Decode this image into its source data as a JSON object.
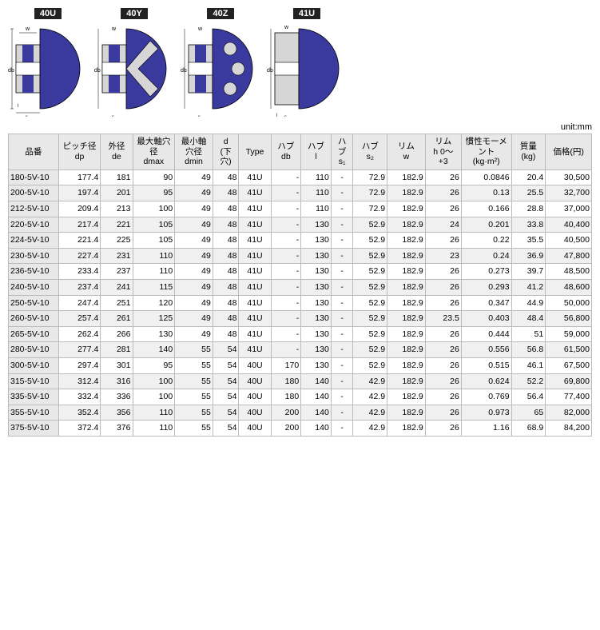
{
  "diagrams": {
    "labels": [
      "40U",
      "40Y",
      "40Z",
      "41U"
    ],
    "pulley_fill": "#3a3a9e",
    "bg_fill": "#d6d6d6",
    "line_color": "#000"
  },
  "unit_text": "unit:mm",
  "headers": [
    "品番",
    "ピッチ径\ndp",
    "外径\nde",
    "最大軸穴\n径\ndmax",
    "最小軸\n穴径\ndmin",
    "d\n(下\n穴)",
    "Type",
    "ハブ\ndb",
    "ハブ\nl",
    "ハ\nブ\ns₁",
    "ハブ\ns₂",
    "リム\nw",
    "リム\nh 0～\n+3",
    "慣性モーメ\nント\n(kg·m²)",
    "質量\n(kg)",
    "価格(円)"
  ],
  "rows": [
    [
      "180-5V-10",
      "177.4",
      "181",
      "90",
      "49",
      "48",
      "41U",
      "-",
      "110",
      "-",
      "72.9",
      "182.9",
      "26",
      "0.0846",
      "20.4",
      "30,500"
    ],
    [
      "200-5V-10",
      "197.4",
      "201",
      "95",
      "49",
      "48",
      "41U",
      "-",
      "110",
      "-",
      "72.9",
      "182.9",
      "26",
      "0.13",
      "25.5",
      "32,700"
    ],
    [
      "212-5V-10",
      "209.4",
      "213",
      "100",
      "49",
      "48",
      "41U",
      "-",
      "110",
      "-",
      "72.9",
      "182.9",
      "26",
      "0.166",
      "28.8",
      "37,000"
    ],
    [
      "220-5V-10",
      "217.4",
      "221",
      "105",
      "49",
      "48",
      "41U",
      "-",
      "130",
      "-",
      "52.9",
      "182.9",
      "24",
      "0.201",
      "33.8",
      "40,400"
    ],
    [
      "224-5V-10",
      "221.4",
      "225",
      "105",
      "49",
      "48",
      "41U",
      "-",
      "130",
      "-",
      "52.9",
      "182.9",
      "26",
      "0.22",
      "35.5",
      "40,500"
    ],
    [
      "230-5V-10",
      "227.4",
      "231",
      "110",
      "49",
      "48",
      "41U",
      "-",
      "130",
      "-",
      "52.9",
      "182.9",
      "23",
      "0.24",
      "36.9",
      "47,800"
    ],
    [
      "236-5V-10",
      "233.4",
      "237",
      "110",
      "49",
      "48",
      "41U",
      "-",
      "130",
      "-",
      "52.9",
      "182.9",
      "26",
      "0.273",
      "39.7",
      "48,500"
    ],
    [
      "240-5V-10",
      "237.4",
      "241",
      "115",
      "49",
      "48",
      "41U",
      "-",
      "130",
      "-",
      "52.9",
      "182.9",
      "26",
      "0.293",
      "41.2",
      "48,600"
    ],
    [
      "250-5V-10",
      "247.4",
      "251",
      "120",
      "49",
      "48",
      "41U",
      "-",
      "130",
      "-",
      "52.9",
      "182.9",
      "26",
      "0.347",
      "44.9",
      "50,000"
    ],
    [
      "260-5V-10",
      "257.4",
      "261",
      "125",
      "49",
      "48",
      "41U",
      "-",
      "130",
      "-",
      "52.9",
      "182.9",
      "23.5",
      "0.403",
      "48.4",
      "56,800"
    ],
    [
      "265-5V-10",
      "262.4",
      "266",
      "130",
      "49",
      "48",
      "41U",
      "-",
      "130",
      "-",
      "52.9",
      "182.9",
      "26",
      "0.444",
      "51",
      "59,000"
    ],
    [
      "280-5V-10",
      "277.4",
      "281",
      "140",
      "55",
      "54",
      "41U",
      "-",
      "130",
      "-",
      "52.9",
      "182.9",
      "26",
      "0.556",
      "56.8",
      "61,500"
    ],
    [
      "300-5V-10",
      "297.4",
      "301",
      "95",
      "55",
      "54",
      "40U",
      "170",
      "130",
      "-",
      "52.9",
      "182.9",
      "26",
      "0.515",
      "46.1",
      "67,500"
    ],
    [
      "315-5V-10",
      "312.4",
      "316",
      "100",
      "55",
      "54",
      "40U",
      "180",
      "140",
      "-",
      "42.9",
      "182.9",
      "26",
      "0.624",
      "52.2",
      "69,800"
    ],
    [
      "335-5V-10",
      "332.4",
      "336",
      "100",
      "55",
      "54",
      "40U",
      "180",
      "140",
      "-",
      "42.9",
      "182.9",
      "26",
      "0.769",
      "56.4",
      "77,400"
    ],
    [
      "355-5V-10",
      "352.4",
      "356",
      "110",
      "55",
      "54",
      "40U",
      "200",
      "140",
      "-",
      "42.9",
      "182.9",
      "26",
      "0.973",
      "65",
      "82,000"
    ],
    [
      "375-5V-10",
      "372.4",
      "376",
      "110",
      "55",
      "54",
      "40U",
      "200",
      "140",
      "-",
      "42.9",
      "182.9",
      "26",
      "1.16",
      "68.9",
      "84,200"
    ]
  ],
  "numeric_cols": [
    1,
    2,
    3,
    4,
    5,
    7,
    8,
    10,
    11,
    12,
    13,
    14,
    15
  ],
  "col_widths": [
    "50px",
    "42px",
    "32px",
    "42px",
    "38px",
    "26px",
    "32px",
    "30px",
    "30px",
    "22px",
    "34px",
    "38px",
    "36px",
    "50px",
    "34px",
    "46px"
  ]
}
